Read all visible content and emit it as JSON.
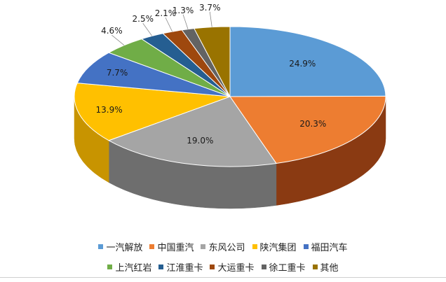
{
  "chart_data": {
    "type": "pie",
    "title": "",
    "legend_position": "bottom",
    "slices": [
      {
        "label": "一汽解放",
        "value": 24.9,
        "value_label": "24.9%",
        "color": "#5B9BD5",
        "side": "#3A6F9E"
      },
      {
        "label": "中国重汽",
        "value": 20.3,
        "value_label": "20.3%",
        "color": "#ED7D31",
        "side": "#8A3A12"
      },
      {
        "label": "东风公司",
        "value": 19.0,
        "value_label": "19.0%",
        "color": "#A5A5A5",
        "side": "#6E6E6E"
      },
      {
        "label": "陕汽集团",
        "value": 13.9,
        "value_label": "13.9%",
        "color": "#FFC000",
        "side": "#C89400"
      },
      {
        "label": "福田汽车",
        "value": 7.7,
        "value_label": "7.7%",
        "color": "#4472C4",
        "side": "#2E5090"
      },
      {
        "label": "上汽红岩",
        "value": 4.6,
        "value_label": "4.6%",
        "color": "#70AD47",
        "side": "#4E7E31"
      },
      {
        "label": "江淮重卡",
        "value": 2.5,
        "value_label": "2.5%",
        "color": "#255E91",
        "side": "#163A5C"
      },
      {
        "label": "大运重卡",
        "value": 2.1,
        "value_label": "2.1%",
        "color": "#9E480E",
        "side": "#5E2A08"
      },
      {
        "label": "徐工重卡",
        "value": 1.3,
        "value_label": "1.3%",
        "color": "#636363",
        "side": "#3C3C3C"
      },
      {
        "label": "其他",
        "value": 3.7,
        "value_label": "3.7%",
        "color": "#997300",
        "side": "#5E4700"
      }
    ]
  }
}
